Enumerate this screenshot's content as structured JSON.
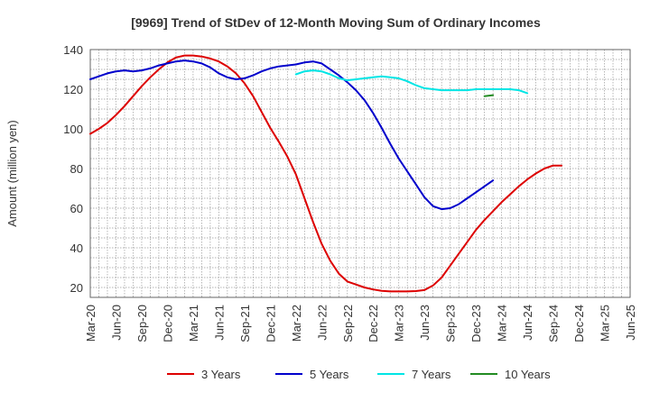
{
  "chart_data": {
    "type": "line",
    "title": "[9969]  Trend of StDev of 12-Month Moving Sum of Ordinary Incomes",
    "xlabel": "",
    "ylabel": "Amount (million yen)",
    "ylim": [
      15,
      140
    ],
    "yticks": [
      20,
      40,
      60,
      80,
      100,
      120,
      140
    ],
    "grid": true,
    "legend_position": "bottom",
    "x_ticks": [
      "Mar-20",
      "Jun-20",
      "Sep-20",
      "Dec-20",
      "Mar-21",
      "Jun-21",
      "Sep-21",
      "Dec-21",
      "Mar-22",
      "Jun-22",
      "Sep-22",
      "Dec-22",
      "Mar-23",
      "Jun-23",
      "Sep-23",
      "Dec-23",
      "Mar-24",
      "Jun-24",
      "Sep-24",
      "Dec-24",
      "Mar-25",
      "Jun-25"
    ],
    "series": [
      {
        "name": "3 Years",
        "color": "#dd0000",
        "points": [
          [
            "Mar-20",
            97.5
          ],
          [
            "Apr-20",
            100.0
          ],
          [
            "May-20",
            103.0
          ],
          [
            "Jun-20",
            107.0
          ],
          [
            "Jul-20",
            111.5
          ],
          [
            "Aug-20",
            116.5
          ],
          [
            "Sep-20",
            121.5
          ],
          [
            "Oct-20",
            126.0
          ],
          [
            "Nov-20",
            130.0
          ],
          [
            "Dec-20",
            133.5
          ],
          [
            "Jan-21",
            136.0
          ],
          [
            "Feb-21",
            137.0
          ],
          [
            "Mar-21",
            137.0
          ],
          [
            "Apr-21",
            136.5
          ],
          [
            "May-21",
            135.5
          ],
          [
            "Jun-21",
            134.0
          ],
          [
            "Jul-21",
            131.5
          ],
          [
            "Aug-21",
            128.0
          ],
          [
            "Sep-21",
            123.0
          ],
          [
            "Oct-21",
            116.5
          ],
          [
            "Nov-21",
            108.5
          ],
          [
            "Dec-21",
            100.5
          ],
          [
            "Jan-22",
            93.5
          ],
          [
            "Feb-22",
            86.0
          ],
          [
            "Mar-22",
            77.0
          ],
          [
            "Apr-22",
            65.0
          ],
          [
            "May-22",
            53.0
          ],
          [
            "Jun-22",
            42.0
          ],
          [
            "Jul-22",
            33.5
          ],
          [
            "Aug-22",
            27.0
          ],
          [
            "Sep-22",
            23.0
          ],
          [
            "Oct-22",
            21.5
          ],
          [
            "Nov-22",
            20.0
          ],
          [
            "Dec-22",
            19.0
          ],
          [
            "Jan-23",
            18.3
          ],
          [
            "Feb-23",
            18.0
          ],
          [
            "Mar-23",
            18.0
          ],
          [
            "Apr-23",
            18.0
          ],
          [
            "May-23",
            18.2
          ],
          [
            "Jun-23",
            18.7
          ],
          [
            "Jul-23",
            21.0
          ],
          [
            "Aug-23",
            25.0
          ],
          [
            "Sep-23",
            31.0
          ],
          [
            "Oct-23",
            37.0
          ],
          [
            "Nov-23",
            43.0
          ],
          [
            "Dec-23",
            49.0
          ],
          [
            "Jan-24",
            54.0
          ],
          [
            "Feb-24",
            58.5
          ],
          [
            "Mar-24",
            63.0
          ],
          [
            "Apr-24",
            67.0
          ],
          [
            "May-24",
            71.0
          ],
          [
            "Jun-24",
            74.5
          ],
          [
            "Jul-24",
            77.5
          ],
          [
            "Aug-24",
            80.0
          ],
          [
            "Sep-24",
            81.5
          ],
          [
            "Oct-24",
            81.5
          ]
        ]
      },
      {
        "name": "5 Years",
        "color": "#0000cc",
        "points": [
          [
            "Mar-20",
            125.0
          ],
          [
            "Apr-20",
            126.5
          ],
          [
            "May-20",
            128.0
          ],
          [
            "Jun-20",
            129.0
          ],
          [
            "Jul-20",
            129.5
          ],
          [
            "Aug-20",
            129.0
          ],
          [
            "Sep-20",
            129.5
          ],
          [
            "Oct-20",
            130.5
          ],
          [
            "Nov-20",
            132.0
          ],
          [
            "Dec-20",
            133.0
          ],
          [
            "Jan-21",
            134.0
          ],
          [
            "Feb-21",
            134.5
          ],
          [
            "Mar-21",
            134.0
          ],
          [
            "Apr-21",
            133.0
          ],
          [
            "May-21",
            131.0
          ],
          [
            "Jun-21",
            128.0
          ],
          [
            "Jul-21",
            126.0
          ],
          [
            "Aug-21",
            125.0
          ],
          [
            "Sep-21",
            125.5
          ],
          [
            "Oct-21",
            127.0
          ],
          [
            "Nov-21",
            129.0
          ],
          [
            "Dec-21",
            130.5
          ],
          [
            "Jan-22",
            131.5
          ],
          [
            "Feb-22",
            132.0
          ],
          [
            "Mar-22",
            132.5
          ],
          [
            "Apr-22",
            133.5
          ],
          [
            "May-22",
            134.0
          ],
          [
            "Jun-22",
            133.0
          ],
          [
            "Jul-22",
            130.0
          ],
          [
            "Aug-22",
            127.0
          ],
          [
            "Sep-22",
            123.5
          ],
          [
            "Oct-22",
            119.5
          ],
          [
            "Nov-22",
            114.5
          ],
          [
            "Dec-22",
            108.0
          ],
          [
            "Jan-23",
            100.5
          ],
          [
            "Feb-23",
            92.5
          ],
          [
            "Mar-23",
            85.0
          ],
          [
            "Apr-23",
            78.5
          ],
          [
            "May-23",
            72.0
          ],
          [
            "Jun-23",
            65.5
          ],
          [
            "Jul-23",
            61.0
          ],
          [
            "Aug-23",
            59.5
          ],
          [
            "Sep-23",
            60.0
          ],
          [
            "Oct-23",
            62.0
          ],
          [
            "Nov-23",
            65.0
          ],
          [
            "Dec-23",
            68.0
          ],
          [
            "Jan-24",
            71.0
          ],
          [
            "Feb-24",
            74.0
          ]
        ]
      },
      {
        "name": "7 Years",
        "color": "#00e5e5",
        "points": [
          [
            "Mar-22",
            127.5
          ],
          [
            "Apr-22",
            129.0
          ],
          [
            "May-22",
            129.5
          ],
          [
            "Jun-22",
            129.0
          ],
          [
            "Jul-22",
            127.5
          ],
          [
            "Aug-22",
            125.5
          ],
          [
            "Sep-22",
            124.5
          ],
          [
            "Oct-22",
            125.0
          ],
          [
            "Nov-22",
            125.5
          ],
          [
            "Dec-22",
            126.0
          ],
          [
            "Jan-23",
            126.5
          ],
          [
            "Feb-23",
            126.0
          ],
          [
            "Mar-23",
            125.5
          ],
          [
            "Apr-23",
            124.0
          ],
          [
            "May-23",
            122.0
          ],
          [
            "Jun-23",
            120.5
          ],
          [
            "Jul-23",
            120.0
          ],
          [
            "Aug-23",
            119.5
          ],
          [
            "Sep-23",
            119.5
          ],
          [
            "Oct-23",
            119.5
          ],
          [
            "Nov-23",
            119.5
          ],
          [
            "Dec-23",
            120.0
          ],
          [
            "Jan-24",
            120.0
          ],
          [
            "Feb-24",
            120.0
          ],
          [
            "Mar-24",
            120.0
          ],
          [
            "Apr-24",
            120.0
          ],
          [
            "May-24",
            119.5
          ],
          [
            "Jun-24",
            118.0
          ]
        ]
      },
      {
        "name": "10 Years",
        "color": "#228b22",
        "points": [
          [
            "Jan-24",
            116.5
          ],
          [
            "Feb-24",
            117.0
          ]
        ]
      }
    ]
  }
}
